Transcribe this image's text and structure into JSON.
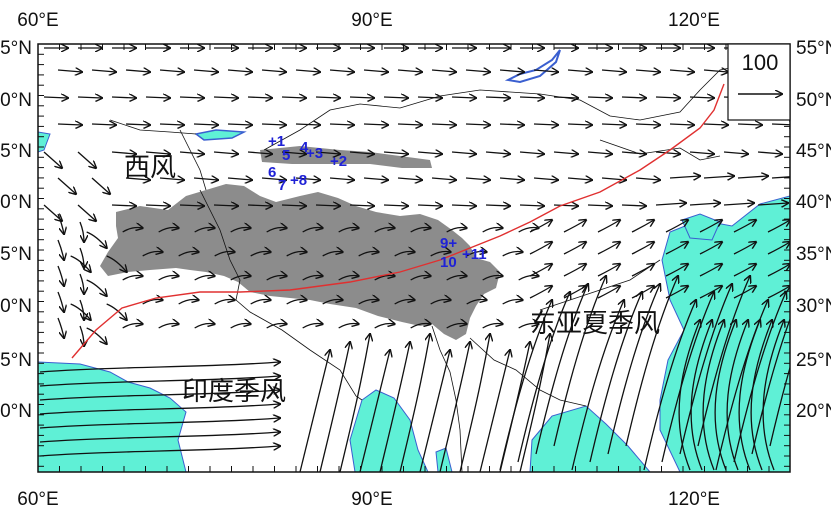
{
  "map": {
    "longitude_labels": [
      "60°E",
      "90°E",
      "120°E"
    ],
    "latitude_labels": [
      "20°N",
      "25°N",
      "30°N",
      "35°N",
      "40°N",
      "45°N",
      "50°N",
      "55°N"
    ],
    "lon_range": [
      60,
      132
    ],
    "lat_range": [
      16,
      57
    ]
  },
  "regions": {
    "westerly": "西风",
    "east_asian_monsoon": "东亚夏季风",
    "indian_monsoon": "印度季风"
  },
  "legend": {
    "reference_vector": "100"
  },
  "sites": [
    {
      "label": "+1"
    },
    {
      "label": "+2"
    },
    {
      "label": "+3"
    },
    {
      "label": "4"
    },
    {
      "label": "5"
    },
    {
      "label": "6"
    },
    {
      "label": "7"
    },
    {
      "label": "+8"
    },
    {
      "label": "9+"
    },
    {
      "label": "10"
    },
    {
      "label": "+11"
    }
  ],
  "colors": {
    "ocean": "#5ff0d6",
    "plateau": "#8c8c8c",
    "boundary_line": "#e03030",
    "site_markers": "#1f22d6",
    "arrows": "#111111"
  }
}
